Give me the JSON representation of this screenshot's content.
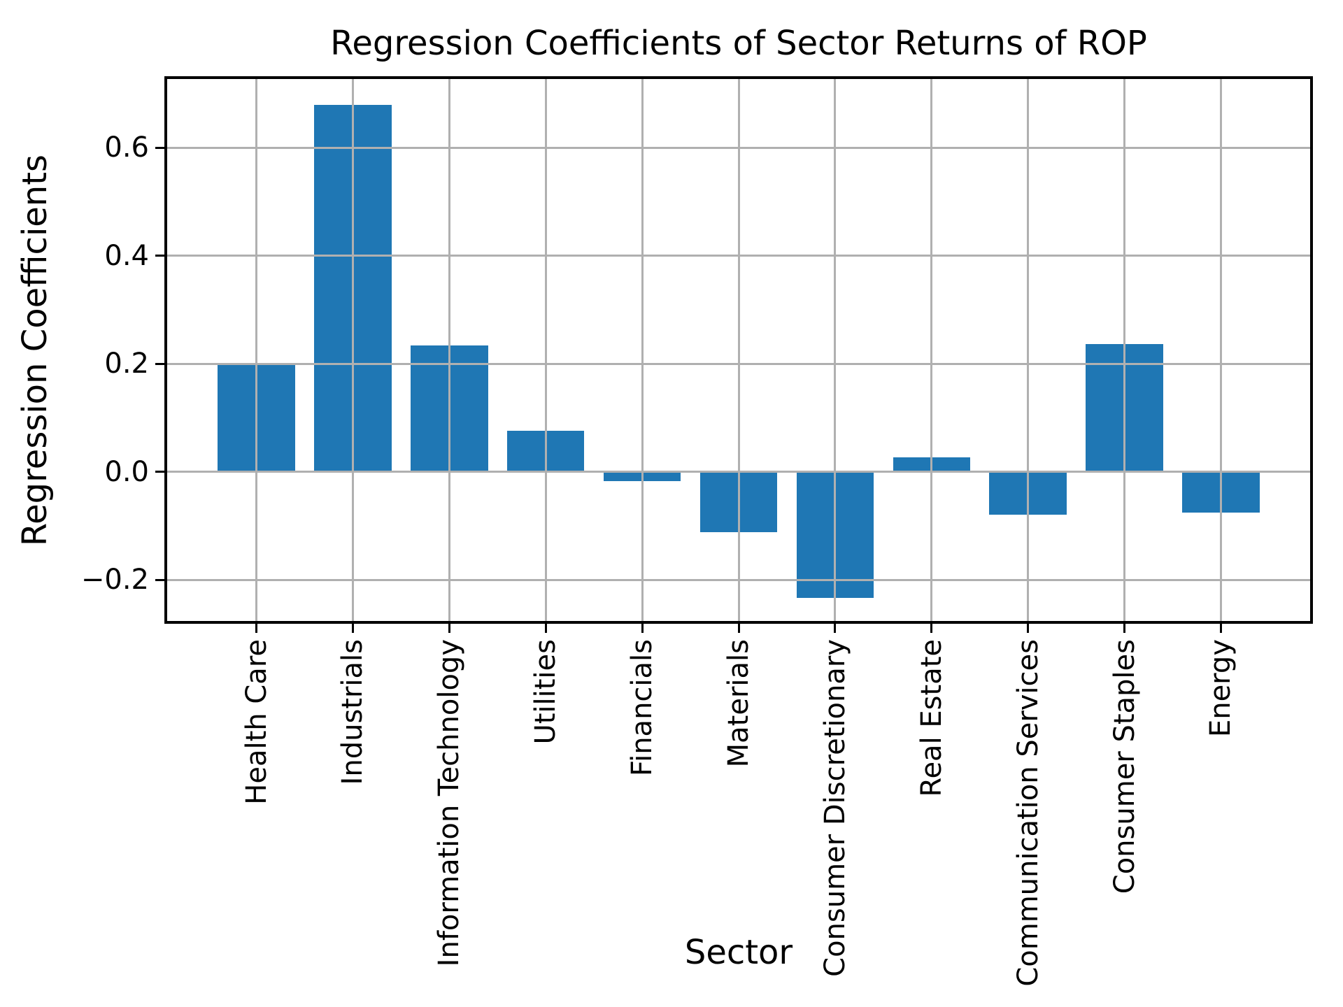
{
  "chart_data": {
    "type": "bar",
    "title": "Regression Coefficients of Sector Returns of ROP",
    "xlabel": "Sector",
    "ylabel": "Regression Coefficients",
    "categories": [
      "Health Care",
      "Industrials",
      "Information Technology",
      "Utilities",
      "Financials",
      "Materials",
      "Consumer Discretionary",
      "Real Estate",
      "Communication Services",
      "Consumer Staples",
      "Energy"
    ],
    "values": [
      0.198,
      0.68,
      0.234,
      0.076,
      -0.018,
      -0.112,
      -0.234,
      0.027,
      -0.08,
      0.236,
      -0.076
    ],
    "yticks": [
      0.6,
      0.4,
      0.2,
      0.0,
      -0.2
    ],
    "ytick_labels": [
      "0.6",
      "0.4",
      "0.2",
      "0.0",
      "−0.2"
    ],
    "ylim": [
      -0.279,
      0.73
    ],
    "x_tick_rotation": 90,
    "grid": "both",
    "legend": "none",
    "bar_width_fraction": 0.8,
    "bar_color": "#1f77b4",
    "grid_color": "#b0b0b0",
    "spine_color": "#000000",
    "text_color": "#000000",
    "background_color": "#ffffff"
  }
}
